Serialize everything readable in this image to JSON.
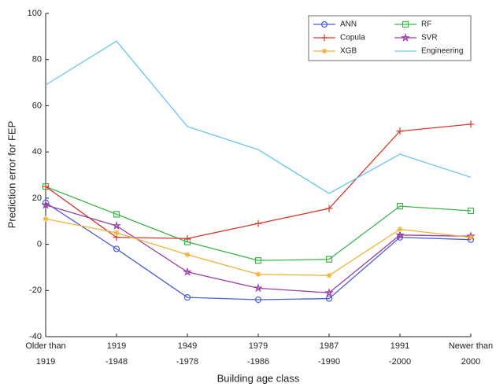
{
  "chart_data": {
    "type": "line",
    "categories": [
      [
        "Older than",
        "1919"
      ],
      [
        "1919",
        "-1948"
      ],
      [
        "1949",
        "-1978"
      ],
      [
        "1979",
        "-1986"
      ],
      [
        "1987",
        "-1990"
      ],
      [
        "1991",
        "-2000"
      ],
      [
        "Newer than",
        "2000"
      ]
    ],
    "x_label": "Building age class",
    "y_label": "Prediction error for FEP",
    "ylim": [
      -40,
      100
    ],
    "yticks": [
      -40,
      -20,
      0,
      20,
      40,
      60,
      80,
      100
    ],
    "grid": false,
    "legend_position": "upper right",
    "series": [
      {
        "name": "ANN",
        "color": "#4a5fd6",
        "marker": "circle",
        "values": [
          18,
          -2,
          -23,
          -24,
          -23.5,
          3,
          2
        ]
      },
      {
        "name": "RF",
        "color": "#3cb44a",
        "marker": "square",
        "values": [
          25,
          13,
          1,
          -7,
          -6.5,
          16.5,
          14.5
        ]
      },
      {
        "name": "Copula",
        "color": "#d43a2a",
        "marker": "plus",
        "values": [
          25,
          3,
          2.5,
          9,
          15.5,
          49,
          52
        ]
      },
      {
        "name": "SVR",
        "color": "#9a3fa6",
        "marker": "star",
        "values": [
          17,
          8,
          -12,
          -19,
          -21,
          4,
          3.5
        ]
      },
      {
        "name": "XGB",
        "color": "#efb136",
        "marker": "asterisk",
        "values": [
          11,
          5,
          -4.5,
          -13,
          -13.5,
          6.5,
          3
        ]
      },
      {
        "name": "Engineering",
        "color": "#67c6ea",
        "marker": "none",
        "values": [
          69,
          88,
          51,
          41,
          22,
          39,
          29
        ]
      }
    ]
  }
}
